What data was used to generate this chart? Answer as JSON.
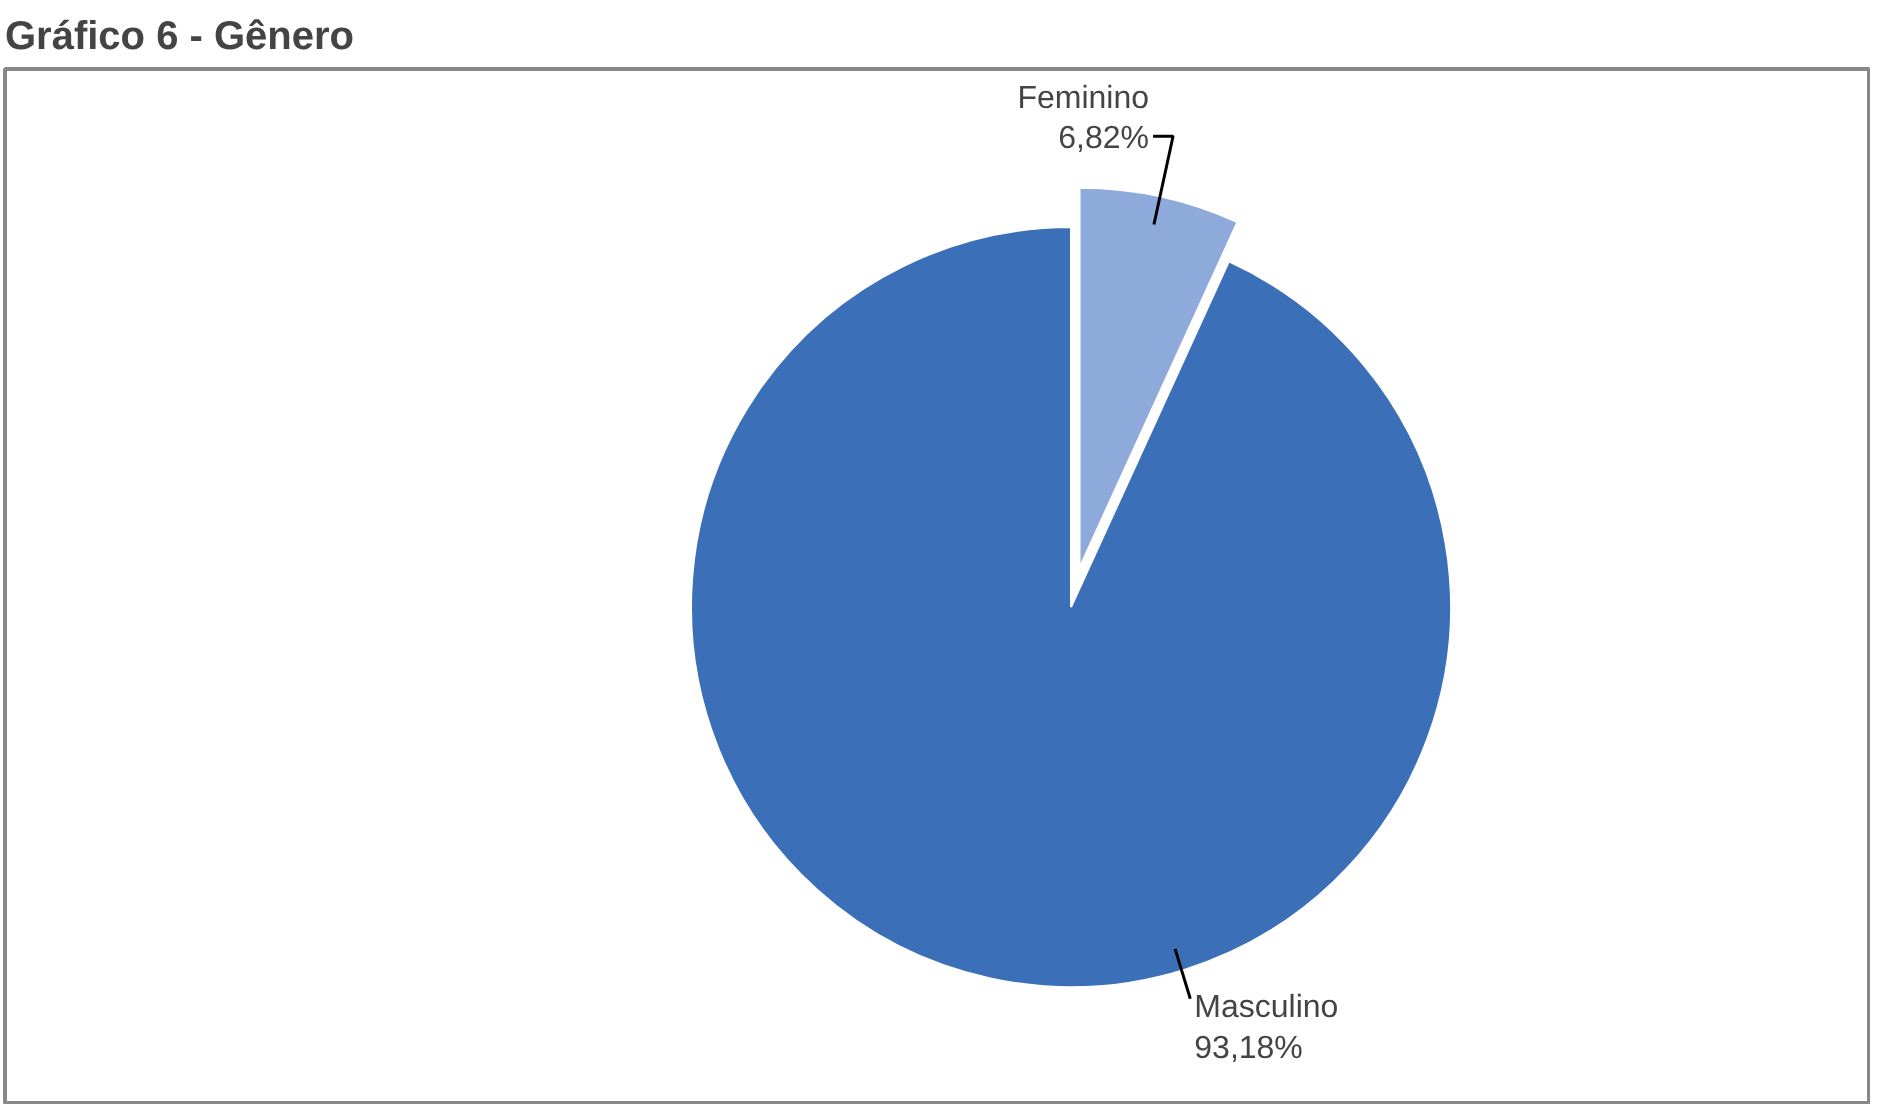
{
  "chart_data": {
    "type": "pie",
    "title": "Gráfico 6 - Gênero",
    "categories": [
      "Feminino",
      "Masculino"
    ],
    "values": [
      6.82,
      93.18
    ],
    "colors": [
      "#8eaadb",
      "#3b70b9"
    ],
    "value_labels": [
      "6,82%",
      "93,18%"
    ]
  }
}
